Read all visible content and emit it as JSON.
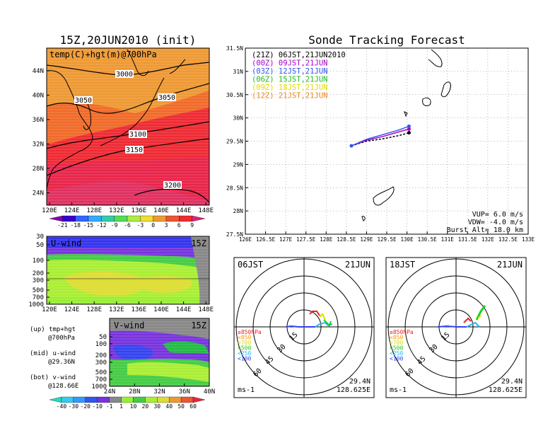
{
  "left_title": "15Z,20JUN2010 (init)",
  "right_title": "Sonde Tracking Forecast",
  "map_panel": {
    "label": "temp(C)+hgt(m)@700hPa",
    "lat_ticks": [
      "44N",
      "40N",
      "36N",
      "32N",
      "28N",
      "24N"
    ],
    "lon_ticks": [
      "120E",
      "124E",
      "128E",
      "132E",
      "136E",
      "140E",
      "144E",
      "148E"
    ],
    "contours": [
      "3000",
      "3050",
      "3050",
      "3100",
      "3150",
      "3200"
    ]
  },
  "temp_colorbar": {
    "labels": [
      "-21",
      "-18",
      "-15",
      "-12",
      "-9",
      "-6",
      "-3",
      "0",
      "3",
      "6",
      "9"
    ]
  },
  "u_panel": {
    "label": "U-wind",
    "time": "15Z",
    "p_ticks": [
      "30",
      "50",
      "100",
      "200",
      "300",
      "500",
      "700",
      "1000"
    ],
    "lon_ticks": [
      "120E",
      "124E",
      "128E",
      "132E",
      "136E",
      "140E",
      "144E",
      "148E"
    ]
  },
  "v_panel": {
    "label": "V-wind",
    "time": "15Z",
    "p_ticks": [
      "50",
      "100",
      "200",
      "300",
      "500",
      "700",
      "1000"
    ],
    "lat_ticks": [
      "24N",
      "28N",
      "32N",
      "36N",
      "40N"
    ]
  },
  "notes": [
    {
      "a": "(up) tmp+hgt",
      "b": "@700hPa"
    },
    {
      "a": "(mid) u-wind",
      "b": "@29.36N"
    },
    {
      "a": "(bot) v-wind",
      "b": "@128.66E"
    }
  ],
  "wind_colorbar": {
    "labels": [
      "-40",
      "-30",
      "-20",
      "-10",
      "-1",
      "1",
      "10",
      "20",
      "30",
      "40",
      "50",
      "60"
    ]
  },
  "track_panel": {
    "lat_ticks": [
      "31.5N",
      "31N",
      "30.5N",
      "30N",
      "29.5N",
      "29N",
      "28.5N",
      "28N",
      "27.5N"
    ],
    "lon_ticks": [
      "126E",
      "126.5E",
      "127E",
      "127.5E",
      "128E",
      "128.5E",
      "129E",
      "129.5E",
      "130E",
      "130.5E",
      "131E",
      "131.5E",
      "132E",
      "132.5E",
      "133E"
    ],
    "legend": [
      {
        "label": "(21Z) 06JST,21JUN2010",
        "color": "#000000"
      },
      {
        "label": "(00Z) 09JST,21JUN",
        "color": "#aa00cc"
      },
      {
        "label": "(03Z) 12JST,21JUN",
        "color": "#3355ee"
      },
      {
        "label": "(06Z) 15JST,21JUN",
        "color": "#22bb22"
      },
      {
        "label": "(09Z) 18JST,21JUN",
        "color": "#dddd00"
      },
      {
        "label": "(12Z) 21JST,21JUN",
        "color": "#ee8822"
      }
    ],
    "params": [
      "VUP= 6.0 m/s",
      "VDW= -4.0 m/s",
      "Burst Alt= 18.0 km"
    ]
  },
  "hodographs": [
    {
      "time": "06JST",
      "date": "21JUN",
      "rings": [
        "15",
        "30",
        "45",
        "60"
      ],
      "unit": "ms-1",
      "lat": "29.4N",
      "lon": "128.625E"
    },
    {
      "time": "18JST",
      "date": "21JUN",
      "rings": [
        "15",
        "30",
        "45",
        "60"
      ],
      "unit": "ms-1",
      "lat": "29.4N",
      "lon": "128.625E"
    }
  ],
  "hodo_legend": [
    {
      "label": "≥850hPa",
      "color": "#ee2222"
    },
    {
      "label": "<850",
      "color": "#ff9900"
    },
    {
      "label": "<700",
      "color": "#dddd00"
    },
    {
      "label": "<500",
      "color": "#22cc22"
    },
    {
      "label": "<250",
      "color": "#22bbee"
    },
    {
      "label": "<100",
      "color": "#3344ee"
    }
  ],
  "chart_data": [
    {
      "type": "heatmap",
      "title": "temp(C)+hgt(m)@700hPa",
      "x_range": [
        "120E",
        "150E"
      ],
      "y_range": [
        "22N",
        "47N"
      ],
      "contour_levels_m": [
        3000,
        3050,
        3100,
        3150,
        3200
      ],
      "colorbar_c": [
        -21,
        -18,
        -15,
        -12,
        -9,
        -6,
        -3,
        0,
        3,
        6,
        9
      ]
    },
    {
      "type": "line",
      "title": "Sonde Tracking Forecast",
      "xlim": [
        126,
        133
      ],
      "ylim": [
        27.5,
        31.5
      ],
      "launch": {
        "lon": 128.625,
        "lat": 29.4
      },
      "series": [
        {
          "name": "(21Z) 06JST,21JUN2010",
          "x": [
            128.625,
            129.0,
            129.4,
            129.8,
            130.05
          ],
          "y": [
            29.4,
            29.5,
            29.55,
            29.62,
            29.68
          ]
        },
        {
          "name": "(00Z) 09JST,21JUN",
          "x": [
            128.625,
            129.0,
            129.4,
            129.8,
            130.05
          ],
          "y": [
            29.4,
            29.52,
            29.6,
            29.7,
            29.76
          ]
        },
        {
          "name": "(03Z) 12JST,21JUN",
          "x": [
            128.625,
            129.0,
            129.4,
            129.8,
            130.05
          ],
          "y": [
            29.4,
            29.54,
            29.64,
            29.74,
            29.82
          ]
        }
      ]
    },
    {
      "type": "scatter",
      "title": "hodograph 06JST 21JUN",
      "rings_ms": [
        15,
        30,
        45,
        60
      ]
    },
    {
      "type": "scatter",
      "title": "hodograph 18JST 21JUN",
      "rings_ms": [
        15,
        30,
        45,
        60
      ]
    }
  ]
}
